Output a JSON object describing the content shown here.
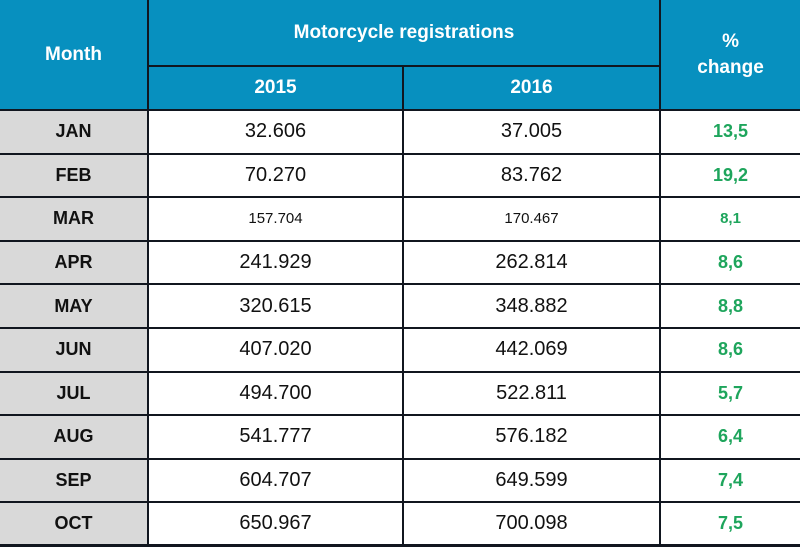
{
  "table": {
    "headers": {
      "month": "Month",
      "group": "Motorcycle registrations",
      "col2015": "2015",
      "col2016": "2016",
      "pct": "% change"
    },
    "rows": [
      {
        "month": "JAN",
        "y2015": "32.606",
        "y2016": "37.005",
        "change": "13,5"
      },
      {
        "month": "FEB",
        "y2015": "70.270",
        "y2016": "83.762",
        "change": "19,2"
      },
      {
        "month": "MAR",
        "y2015": "157.704",
        "y2016": "170.467",
        "change": "8,1"
      },
      {
        "month": "APR",
        "y2015": "241.929",
        "y2016": "262.814",
        "change": "8,6"
      },
      {
        "month": "MAY",
        "y2015": "320.615",
        "y2016": "348.882",
        "change": "8,8"
      },
      {
        "month": "JUN",
        "y2015": "407.020",
        "y2016": "442.069",
        "change": "8,6"
      },
      {
        "month": "JUL",
        "y2015": "494.700",
        "y2016": "522.811",
        "change": "5,7"
      },
      {
        "month": "AUG",
        "y2015": "541.777",
        "y2016": "576.182",
        "change": "6,4"
      },
      {
        "month": "SEP",
        "y2015": "604.707",
        "y2016": "649.599",
        "change": "7,4"
      },
      {
        "month": "OCT",
        "y2015": "650.967",
        "y2016": "700.098",
        "change": "7,5"
      }
    ]
  },
  "colors": {
    "header_bg": "#0790bf",
    "month_bg": "#d9d9d9",
    "border": "#11161f",
    "positive_green": "#1ea55c"
  },
  "chart_data": {
    "type": "table",
    "title": "Motorcycle registrations",
    "categories": [
      "JAN",
      "FEB",
      "MAR",
      "APR",
      "MAY",
      "JUN",
      "JUL",
      "AUG",
      "SEP",
      "OCT"
    ],
    "series": [
      {
        "name": "2015",
        "values": [
          32606,
          70270,
          157704,
          241929,
          320615,
          407020,
          494700,
          541777,
          604707,
          650967
        ]
      },
      {
        "name": "2016",
        "values": [
          37005,
          83762,
          170467,
          262814,
          348882,
          442069,
          522811,
          576182,
          649599,
          700098
        ]
      },
      {
        "name": "% change",
        "values": [
          13.5,
          19.2,
          8.1,
          8.6,
          8.8,
          8.6,
          5.7,
          6.4,
          7.4,
          7.5
        ]
      }
    ],
    "layout": {
      "columns": [
        "Month",
        "2015",
        "2016",
        "% change"
      ],
      "number_format": "thousands separated by dot, decimals by comma",
      "positive_change_color": "#1ea55c"
    }
  }
}
